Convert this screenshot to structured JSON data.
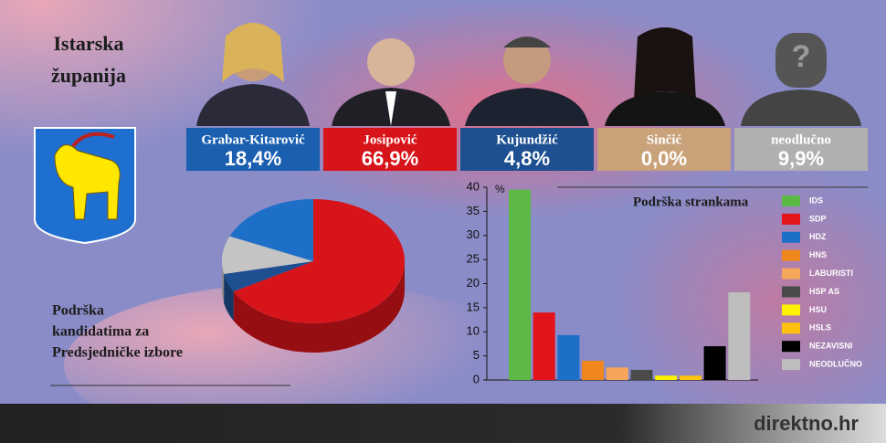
{
  "header": {
    "region": [
      "Istarska",
      "županija"
    ]
  },
  "placeholder_symbol": "?",
  "footer": {
    "brand": "direktno.hr"
  },
  "chart_data": [
    {
      "type": "pie",
      "title": [
        "Podrška",
        "kandidatima za",
        "Predsjedničke izbore"
      ],
      "categories": [
        "Grabar-Kitarović",
        "Josipović",
        "Kujundžić",
        "Sinčić",
        "neodlučno"
      ],
      "values": [
        18.4,
        66.9,
        4.8,
        0,
        9.9
      ],
      "value_labels": [
        "18,4%",
        "66,9%",
        "4,8%",
        "0,0%",
        "9,9%"
      ],
      "colors": [
        "#1e6fc8",
        "#d7141a",
        "#1d4f91",
        "#c9a27a",
        "#c4c4c4"
      ]
    },
    {
      "type": "bar",
      "title": "Podrška strankama",
      "ylabel": "%",
      "categories": [
        "IDS",
        "SDP",
        "HDZ",
        "HNS",
        "LABURISTI",
        "HSP AS",
        "HSU",
        "HSLS",
        "NEZAVISNI",
        "NEODLUČNO"
      ],
      "values": [
        39.5,
        14,
        9.3,
        4,
        2.6,
        2.1,
        0.9,
        0.9,
        7,
        18.2
      ],
      "colors": [
        "#5cb946",
        "#e3141c",
        "#1e6fc8",
        "#f0871d",
        "#f5a65b",
        "#4a4a4a",
        "#fff200",
        "#ffc20e",
        "#000000",
        "#bdbdbd"
      ],
      "ylim": [
        0,
        40
      ],
      "yticks": [
        0,
        5,
        10,
        15,
        20,
        25,
        30,
        35,
        40
      ],
      "grid": false
    }
  ]
}
